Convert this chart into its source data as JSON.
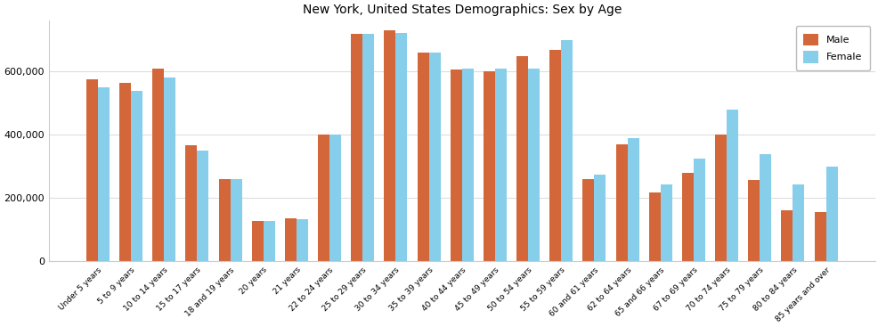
{
  "title": "New York, United States Demographics: Sex by Age",
  "categories": [
    "Under 5 years",
    "5 to 9 years",
    "10 to 14 years",
    "15 to 17 years",
    "18 and 19 years",
    "20 years",
    "21 years",
    "22 to 24 years",
    "25 to 29 years",
    "30 to 34 years",
    "35 to 39 years",
    "40 to 44 years",
    "45 to 49 years",
    "50 to 54 years",
    "55 to 59 years",
    "60 and 61 years",
    "62 to 64 years",
    "65 and 66 years",
    "67 to 69 years",
    "70 to 74 years",
    "75 to 79 years",
    "80 to 84 years",
    "85 years and over"
  ],
  "male": [
    575000,
    565000,
    610000,
    368000,
    260000,
    128000,
    135000,
    400000,
    720000,
    730000,
    660000,
    607000,
    600000,
    650000,
    668000,
    260000,
    370000,
    218000,
    280000,
    400000,
    258000,
    163000,
    157000
  ],
  "female": [
    550000,
    540000,
    580000,
    350000,
    260000,
    128000,
    133000,
    400000,
    720000,
    722000,
    660000,
    608000,
    608000,
    610000,
    700000,
    273000,
    390000,
    242000,
    325000,
    480000,
    340000,
    243000,
    300000
  ],
  "male_color": "#d4673a",
  "female_color": "#87ceeb",
  "ylim": [
    0,
    760000
  ],
  "yticks": [
    0,
    200000,
    400000,
    600000
  ],
  "ytick_labels": [
    "0",
    "200,000",
    "400,000",
    "600,000"
  ],
  "plot_bg_color": "#ffffff",
  "fig_bg_color": "#ffffff",
  "legend_labels": [
    "Male",
    "Female"
  ],
  "bar_width": 0.35,
  "title_fontsize": 10,
  "tick_fontsize": 6.5,
  "ytick_fontsize": 8
}
